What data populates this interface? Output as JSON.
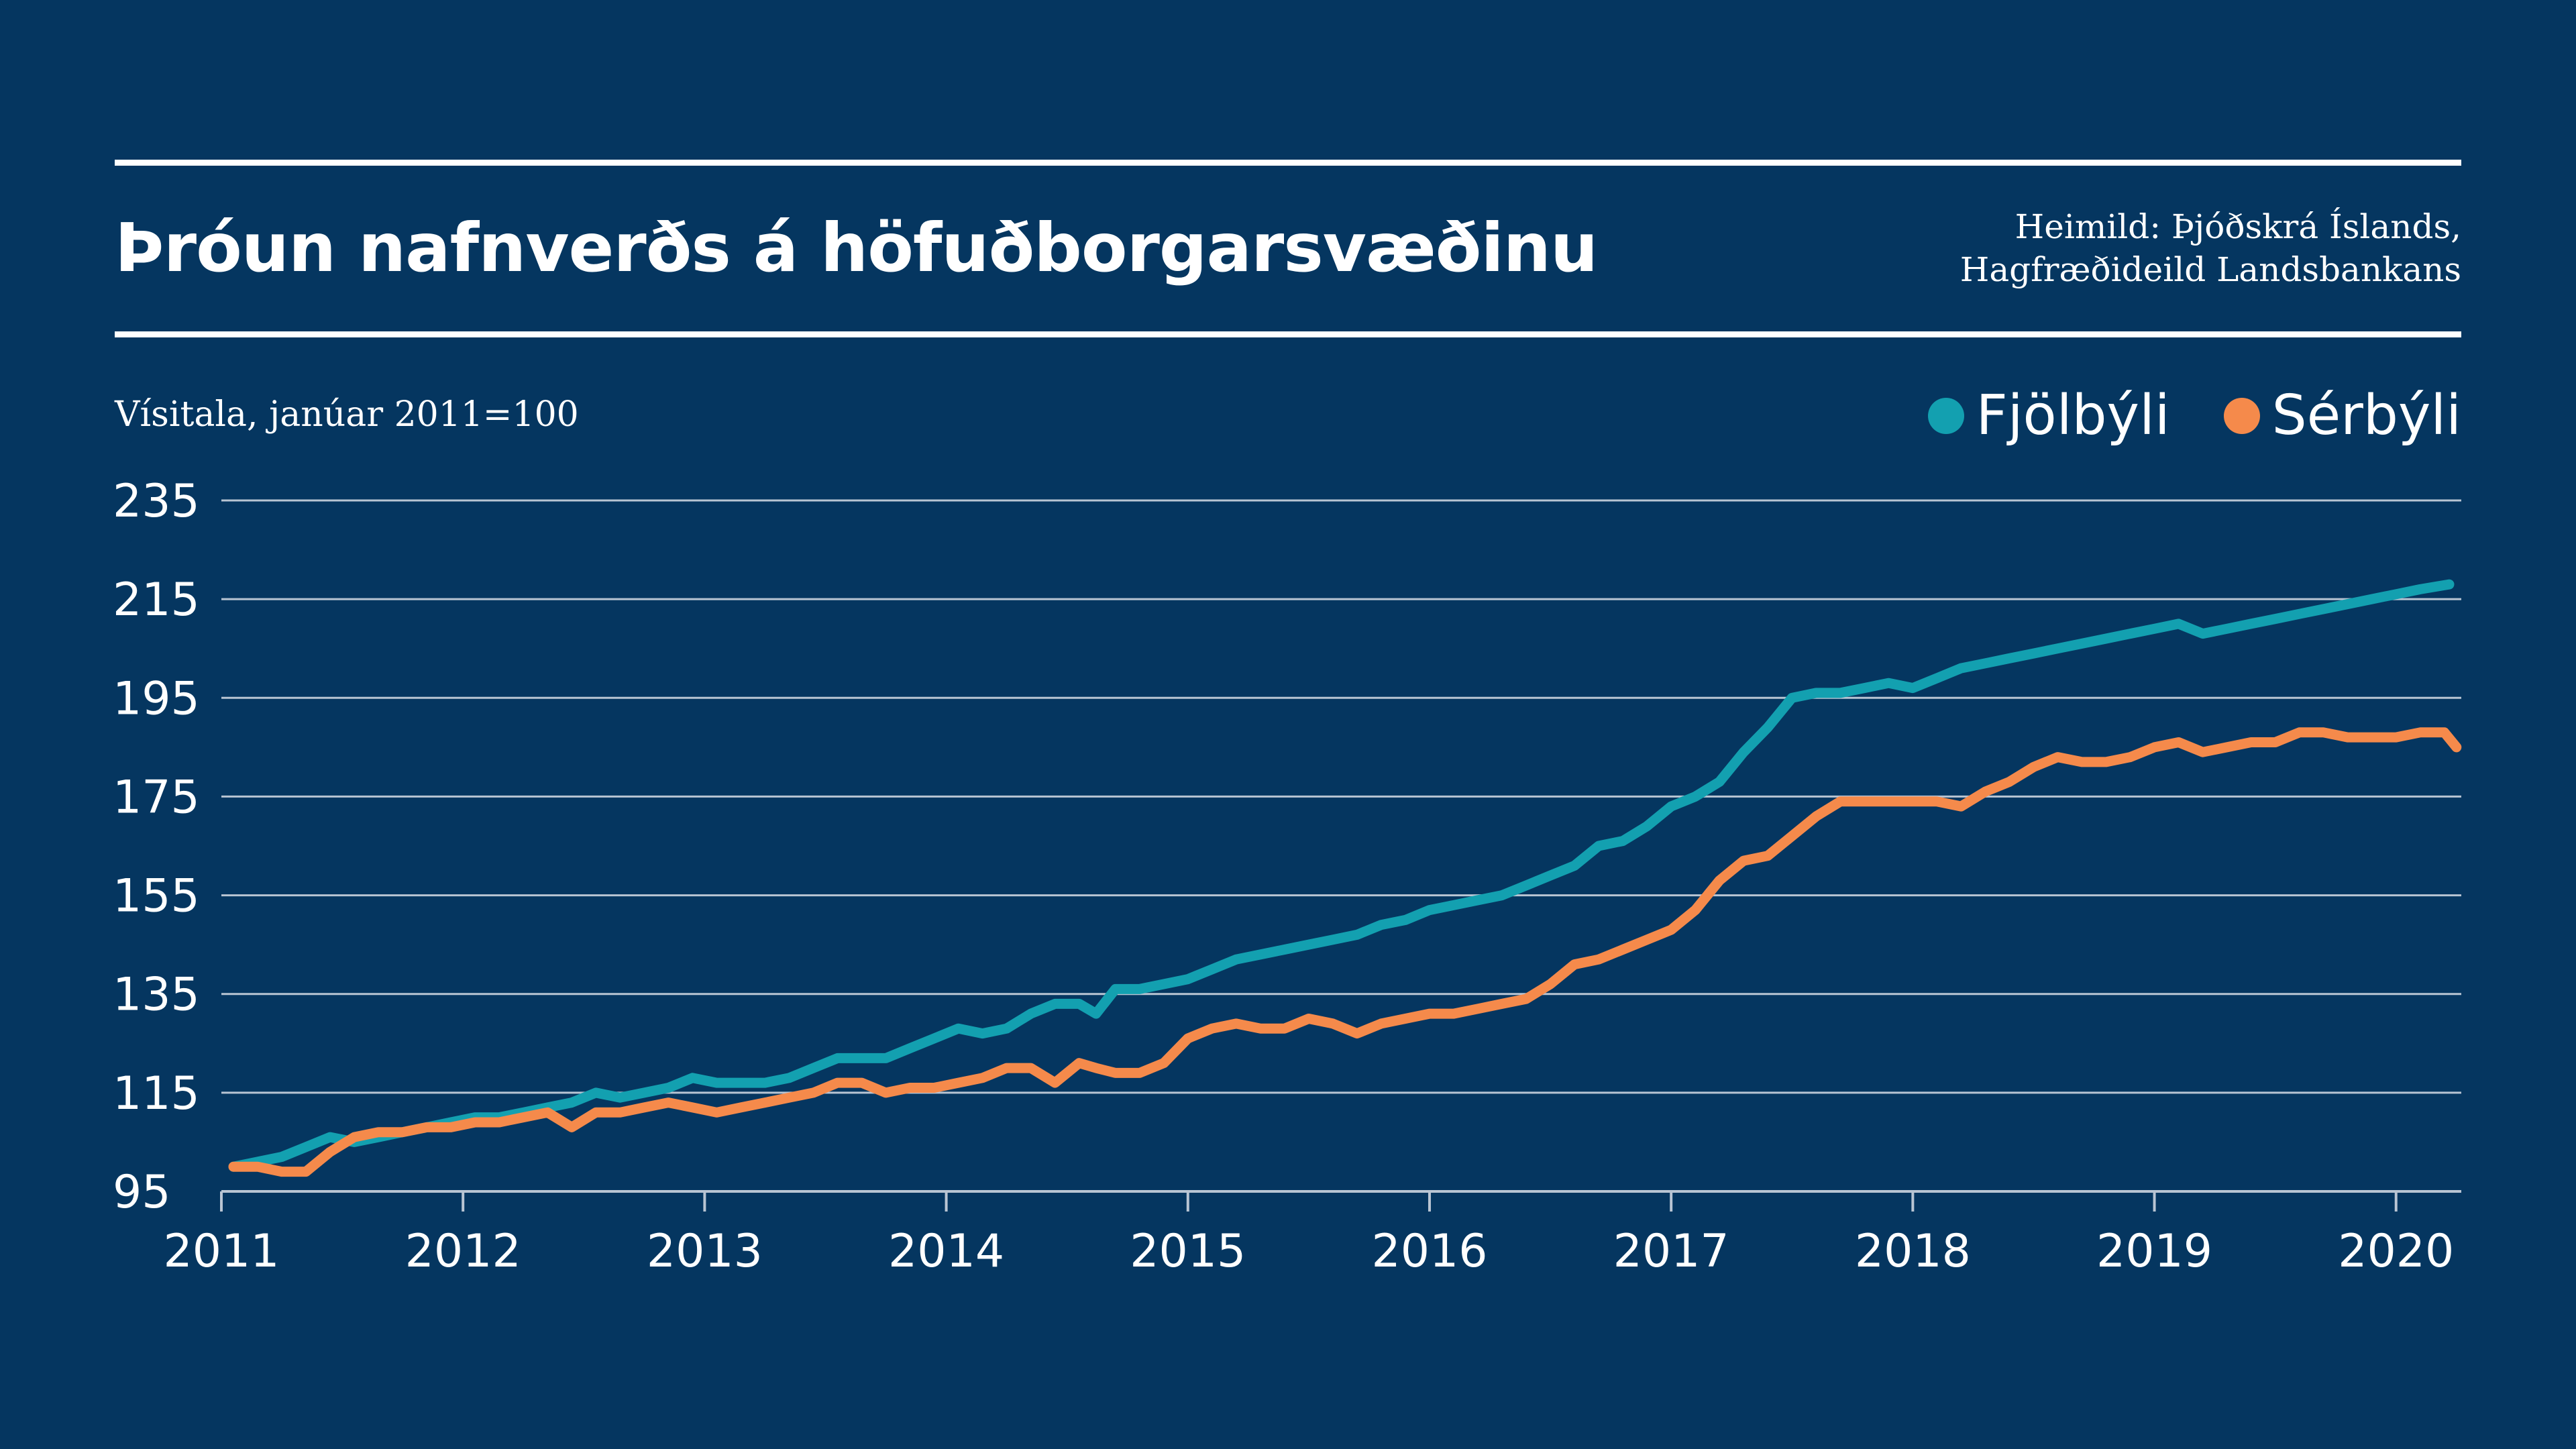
{
  "header": {
    "title": "Þróun nafnverðs á höfuðborgarsvæðinu",
    "source_line1": "Heimild: Þjóðskrá Íslands,",
    "source_line2": "Hagfræðideild Landsbankans"
  },
  "colors": {
    "background": "#053660",
    "fjolbyli": "#13a0b0",
    "serbyli": "#f58a4b",
    "grid": "#b9c5d3"
  },
  "chart_data": {
    "type": "line",
    "ylabel": "Vísitala, janúar 2011=100",
    "ylim": [
      95,
      235
    ],
    "yticks": [
      95,
      115,
      135,
      155,
      175,
      195,
      215,
      235
    ],
    "xlim": [
      2011,
      2020.27
    ],
    "xticks": [
      "2011",
      "2012",
      "2013",
      "2014",
      "2015",
      "2016",
      "2017",
      "2018",
      "2019",
      "2020"
    ],
    "grid": "horizontal",
    "legend_placement": "top-right",
    "series": [
      {
        "name": "Fjölbýli",
        "x": [
          2011.05,
          2011.15,
          2011.25,
          2011.35,
          2011.45,
          2011.55,
          2011.65,
          2011.75,
          2011.85,
          2011.95,
          2012.05,
          2012.15,
          2012.25,
          2012.35,
          2012.45,
          2012.55,
          2012.65,
          2012.75,
          2012.85,
          2012.95,
          2013.05,
          2013.15,
          2013.25,
          2013.35,
          2013.45,
          2013.55,
          2013.65,
          2013.75,
          2013.85,
          2013.95,
          2014.05,
          2014.15,
          2014.25,
          2014.35,
          2014.45,
          2014.55,
          2014.62,
          2014.7,
          2014.8,
          2014.9,
          2015.0,
          2015.1,
          2015.2,
          2015.3,
          2015.4,
          2015.5,
          2015.6,
          2015.7,
          2015.8,
          2015.9,
          2016.0,
          2016.1,
          2016.2,
          2016.3,
          2016.4,
          2016.5,
          2016.6,
          2016.7,
          2016.8,
          2016.9,
          2017.0,
          2017.1,
          2017.2,
          2017.3,
          2017.4,
          2017.5,
          2017.6,
          2017.7,
          2017.8,
          2017.9,
          2018.0,
          2018.1,
          2018.2,
          2018.3,
          2018.4,
          2018.5,
          2018.6,
          2018.7,
          2018.8,
          2018.9,
          2019.0,
          2019.1,
          2019.2,
          2019.3,
          2019.4,
          2019.5,
          2019.6,
          2019.7,
          2019.8,
          2019.9,
          2020.0,
          2020.1,
          2020.22
        ],
        "values": [
          100,
          101,
          102,
          104,
          106,
          105,
          106,
          107,
          108,
          109,
          110,
          110,
          111,
          112,
          113,
          115,
          114,
          115,
          116,
          118,
          117,
          117,
          117,
          118,
          120,
          122,
          122,
          122,
          124,
          126,
          128,
          127,
          128,
          131,
          133,
          133,
          131,
          136,
          136,
          137,
          138,
          140,
          142,
          143,
          144,
          145,
          146,
          147,
          149,
          150,
          152,
          153,
          154,
          155,
          157,
          159,
          161,
          165,
          166,
          169,
          173,
          175,
          178,
          184,
          189,
          195,
          196,
          196,
          197,
          198,
          197,
          199,
          201,
          202,
          203,
          204,
          205,
          206,
          207,
          208,
          209,
          210,
          208,
          209,
          210,
          211,
          212,
          213,
          214,
          215,
          216,
          217,
          218
        ]
      },
      {
        "name": "Sérbýli",
        "x": [
          2011.05,
          2011.15,
          2011.25,
          2011.35,
          2011.45,
          2011.55,
          2011.65,
          2011.75,
          2011.85,
          2011.95,
          2012.05,
          2012.15,
          2012.25,
          2012.35,
          2012.45,
          2012.55,
          2012.65,
          2012.75,
          2012.85,
          2012.95,
          2013.05,
          2013.15,
          2013.25,
          2013.35,
          2013.45,
          2013.55,
          2013.65,
          2013.75,
          2013.85,
          2013.95,
          2014.05,
          2014.15,
          2014.25,
          2014.35,
          2014.45,
          2014.55,
          2014.62,
          2014.7,
          2014.8,
          2014.9,
          2015.0,
          2015.1,
          2015.2,
          2015.3,
          2015.4,
          2015.5,
          2015.6,
          2015.7,
          2015.8,
          2015.9,
          2016.0,
          2016.1,
          2016.2,
          2016.3,
          2016.4,
          2016.5,
          2016.6,
          2016.7,
          2016.8,
          2016.9,
          2017.0,
          2017.1,
          2017.2,
          2017.3,
          2017.4,
          2017.5,
          2017.6,
          2017.7,
          2017.8,
          2017.9,
          2018.0,
          2018.1,
          2018.2,
          2018.3,
          2018.4,
          2018.5,
          2018.6,
          2018.7,
          2018.8,
          2018.9,
          2019.0,
          2019.1,
          2019.2,
          2019.3,
          2019.4,
          2019.5,
          2019.6,
          2019.7,
          2019.8,
          2019.9,
          2020.0,
          2020.1,
          2020.2,
          2020.25
        ],
        "values": [
          100,
          100,
          99,
          99,
          103,
          106,
          107,
          107,
          108,
          108,
          109,
          109,
          110,
          111,
          108,
          111,
          111,
          112,
          113,
          112,
          111,
          112,
          113,
          114,
          115,
          117,
          117,
          115,
          116,
          116,
          117,
          118,
          120,
          120,
          117,
          121,
          120,
          119,
          119,
          121,
          126,
          128,
          129,
          128,
          128,
          130,
          129,
          127,
          129,
          130,
          131,
          131,
          132,
          133,
          134,
          137,
          141,
          142,
          144,
          146,
          148,
          152,
          158,
          162,
          163,
          167,
          171,
          174,
          174,
          174,
          174,
          174,
          173,
          176,
          178,
          181,
          183,
          182,
          182,
          183,
          185,
          186,
          184,
          185,
          186,
          186,
          188,
          188,
          187,
          187,
          187,
          188,
          188,
          185
        ]
      }
    ]
  }
}
